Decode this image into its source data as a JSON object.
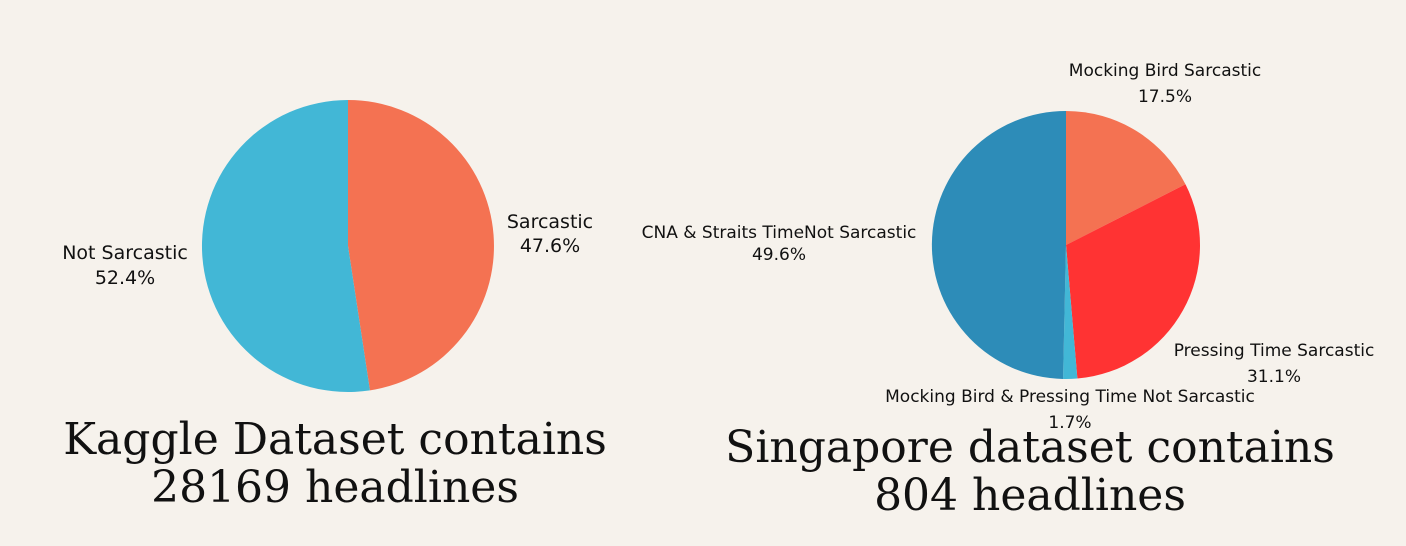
{
  "chart_data": [
    {
      "type": "pie",
      "title": "Kaggle Dataset contains 28169 headlines",
      "slices": [
        {
          "label": "Sarcastic",
          "pct_text": "47.6%",
          "value": 47.6,
          "color": "#f47252"
        },
        {
          "label": "Not Sarcastic",
          "pct_text": "52.4%",
          "value": 52.4,
          "color": "#42b7d6"
        }
      ]
    },
    {
      "type": "pie",
      "title": "Singapore dataset contains 804 headlines",
      "slices": [
        {
          "label": "Mocking Bird Sarcastic",
          "pct_text": "17.5%",
          "value": 17.5,
          "color": "#f47252"
        },
        {
          "label": "Pressing Time Sarcastic",
          "pct_text": "31.1%",
          "value": 31.1,
          "color": "#ff3333"
        },
        {
          "label": "Mocking Bird & Pressing Time Not Sarcastic",
          "pct_text": "1.7%",
          "value": 1.7,
          "color": "#42b7d6"
        },
        {
          "label": "CNA & Straits TimeNot Sarcastic",
          "pct_text": "49.6%",
          "value": 49.6,
          "color": "#2d8cb8"
        }
      ]
    }
  ]
}
